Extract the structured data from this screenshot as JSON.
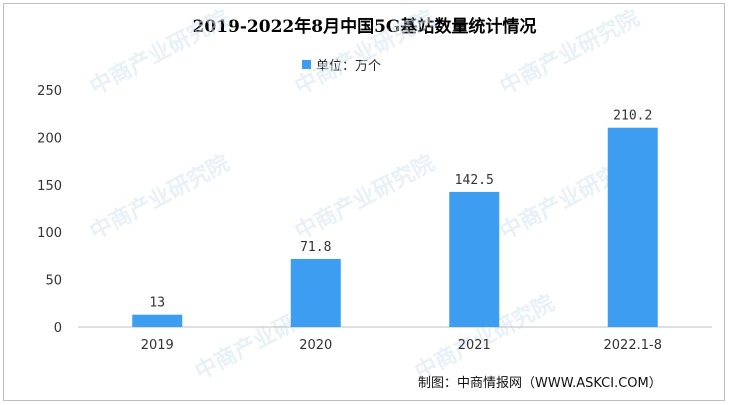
{
  "title": "2019-2022年8月中国5G基站数量统计情况",
  "legend_label": "单位：万个",
  "credit": "制图：中商情报网（WWW.ASKCI.COM）",
  "watermark": "中商产业研究院",
  "colors": {
    "bar": "#3d9df0",
    "axis": "#bfbfbf"
  },
  "chart_data": {
    "type": "bar",
    "title": "2019-2022年8月中国5G基站数量统计情况",
    "categories": [
      "2019",
      "2020",
      "2021",
      "2022.1-8"
    ],
    "series": [
      {
        "name": "单位：万个",
        "values": [
          13,
          71.8,
          142.5,
          210.2
        ]
      }
    ],
    "data_labels": [
      "13",
      "71.8",
      "142.5",
      "210.2"
    ],
    "ylim": [
      0,
      250
    ],
    "yticks": [
      0,
      50,
      100,
      150,
      200,
      250
    ],
    "xlabel": "",
    "ylabel": "",
    "grid": false,
    "legend": "top-center"
  }
}
